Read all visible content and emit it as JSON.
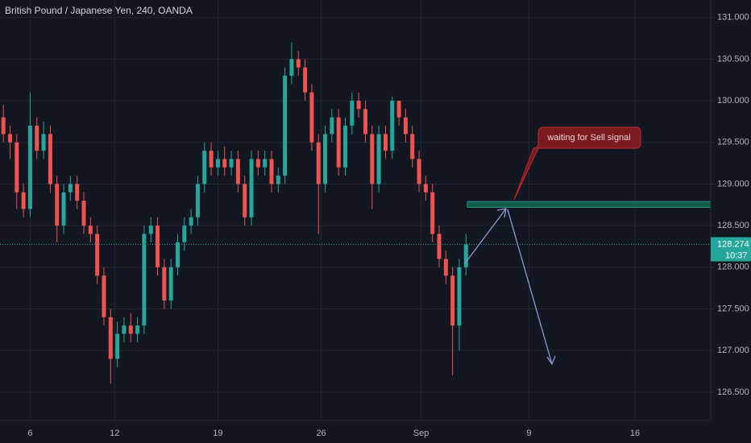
{
  "chart_data": {
    "type": "candlestick",
    "title": "British Pound / Japanese Yen, 240, OANDA",
    "open": [
      129.8,
      129.6,
      129.5,
      128.9,
      128.7,
      129.7,
      129.4,
      129.6,
      129.0,
      128.5,
      128.9,
      129.0,
      128.8,
      128.5,
      128.4,
      127.9,
      127.4,
      126.9,
      127.2,
      127.3,
      127.2,
      127.3,
      128.4,
      128.5,
      128.0,
      127.6,
      128.0,
      128.3,
      128.5,
      128.6,
      129.0,
      129.4,
      129.2,
      129.3,
      129.2,
      129.3,
      129.0,
      128.6,
      129.3,
      129.2,
      129.3,
      129.0,
      129.1,
      130.3,
      130.5,
      130.4,
      130.1,
      129.5,
      129.0,
      129.6,
      129.8,
      129.2,
      129.7,
      130.0,
      129.9,
      129.6,
      129.0,
      129.6,
      129.4,
      130.0,
      129.8,
      129.6,
      129.3,
      129.0,
      128.9,
      128.4,
      128.1,
      127.9,
      127.3,
      128.0
    ],
    "high": [
      129.95,
      129.7,
      129.6,
      129.0,
      130.1,
      129.8,
      129.75,
      129.7,
      129.1,
      129.0,
      129.1,
      129.1,
      128.9,
      128.6,
      128.5,
      128.0,
      127.5,
      127.35,
      127.4,
      127.45,
      127.4,
      128.5,
      128.6,
      128.6,
      128.1,
      128.1,
      128.4,
      128.6,
      128.7,
      129.1,
      129.5,
      129.5,
      129.4,
      129.45,
      129.4,
      129.4,
      129.1,
      129.4,
      129.4,
      129.4,
      129.4,
      129.2,
      130.4,
      130.7,
      130.6,
      130.5,
      130.2,
      129.6,
      129.7,
      129.9,
      129.9,
      129.8,
      130.1,
      130.1,
      130.0,
      129.7,
      129.7,
      129.7,
      130.05,
      130.0,
      129.9,
      129.7,
      129.4,
      129.1,
      129.0,
      128.5,
      128.2,
      128.0,
      128.1,
      128.4
    ],
    "low": [
      129.5,
      129.3,
      128.7,
      128.6,
      128.6,
      129.3,
      129.3,
      128.9,
      128.3,
      128.4,
      128.8,
      128.7,
      128.4,
      128.3,
      127.8,
      127.3,
      126.6,
      126.8,
      127.1,
      127.1,
      127.1,
      127.2,
      128.3,
      127.9,
      127.5,
      127.5,
      127.9,
      128.2,
      128.4,
      128.5,
      128.9,
      129.1,
      129.1,
      129.1,
      129.1,
      128.9,
      128.5,
      128.5,
      129.1,
      129.1,
      128.9,
      128.9,
      129.0,
      130.2,
      130.3,
      130.0,
      129.4,
      128.4,
      128.9,
      129.5,
      129.1,
      129.1,
      129.6,
      129.8,
      129.5,
      128.7,
      128.9,
      129.3,
      129.3,
      129.7,
      129.5,
      129.2,
      128.9,
      128.8,
      128.3,
      128.0,
      127.8,
      126.7,
      127.0,
      127.9
    ],
    "close": [
      129.6,
      129.5,
      128.9,
      128.7,
      129.7,
      129.4,
      129.6,
      129.0,
      128.5,
      128.9,
      129.0,
      128.8,
      128.5,
      128.4,
      127.9,
      127.4,
      126.9,
      127.2,
      127.3,
      127.2,
      127.3,
      128.4,
      128.5,
      128.0,
      127.6,
      128.0,
      128.3,
      128.5,
      128.6,
      129.0,
      129.4,
      129.2,
      129.3,
      129.2,
      129.3,
      129.0,
      128.6,
      129.3,
      129.2,
      129.3,
      129.0,
      129.1,
      130.3,
      130.5,
      130.4,
      130.1,
      129.5,
      129.0,
      129.6,
      129.8,
      129.2,
      129.7,
      130.0,
      129.9,
      129.6,
      129.0,
      129.6,
      129.4,
      130.0,
      129.8,
      129.6,
      129.3,
      129.0,
      128.9,
      128.4,
      128.1,
      127.9,
      127.3,
      128.0,
      128.274
    ],
    "up_color": "#26a69a",
    "down_color": "#ef5350",
    "xlim": [
      0,
      106
    ],
    "xticks": [
      {
        "value": 4.5,
        "label": "6"
      },
      {
        "value": 17.1,
        "label": "12"
      },
      {
        "value": 32.5,
        "label": "19"
      },
      {
        "value": 47.9,
        "label": "26"
      },
      {
        "value": 62.8,
        "label": "Sep"
      },
      {
        "value": 78.9,
        "label": "9"
      },
      {
        "value": 94.7,
        "label": "16"
      }
    ],
    "ylim": [
      126.16,
      131.21
    ],
    "yticks": [
      {
        "value": 126.5,
        "label": "126.500"
      },
      {
        "value": 127,
        "label": "127.000"
      },
      {
        "value": 127.5,
        "label": "127.500"
      },
      {
        "value": 128,
        "label": "128.000"
      },
      {
        "value": 128.5,
        "label": "128.500"
      },
      {
        "value": 129,
        "label": "129.000"
      },
      {
        "value": 129.5,
        "label": "129.500"
      },
      {
        "value": 130,
        "label": "130.000"
      },
      {
        "value": 130.5,
        "label": "130.500"
      },
      {
        "value": 131,
        "label": "131.000"
      }
    ],
    "grid": true,
    "last_price": 128.274,
    "countdown": "10:37",
    "zone": {
      "from": 128.72,
      "to": 128.79,
      "start": 69.7
    },
    "annotation": "waiting for Sell signal"
  }
}
